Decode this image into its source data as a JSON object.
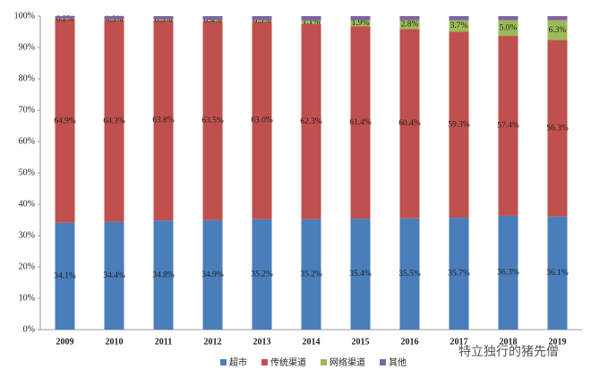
{
  "chart_data": {
    "type": "stacked_bar",
    "categories": [
      "2009",
      "2010",
      "2011",
      "2012",
      "2013",
      "2014",
      "2015",
      "2016",
      "2017",
      "2018",
      "2019"
    ],
    "series": [
      {
        "name": "超市",
        "color": "#4a7ebb",
        "values": [
          34.1,
          34.4,
          34.8,
          34.9,
          35.2,
          35.2,
          35.4,
          35.5,
          35.7,
          36.3,
          36.1
        ],
        "value_labels": [
          "34.1%",
          "34.4%",
          "34.8%",
          "34.9%",
          "35.2%",
          "35.2%",
          "35.4%",
          "35.5%",
          "35.7%",
          "36.3%",
          "36.1%"
        ]
      },
      {
        "name": "传统渠道",
        "color": "#c0504d",
        "values": [
          64.9,
          64.3,
          63.8,
          63.5,
          63.0,
          62.3,
          61.4,
          60.4,
          59.3,
          57.4,
          56.3
        ],
        "value_labels": [
          "64.9%",
          "64.3%",
          "63.8%",
          "63.5%",
          "63.0%",
          "62.3%",
          "61.4%",
          "60.4%",
          "59.3%",
          "57.4%",
          "56.3%"
        ]
      },
      {
        "name": "网络渠道",
        "color": "#9bbb59",
        "values": [
          0.2,
          0.3,
          0.3,
          0.4,
          0.5,
          1.1,
          1.9,
          2.8,
          3.7,
          5.0,
          6.3
        ],
        "value_labels": [
          "0.2%",
          "0.3%",
          "0.3%",
          "0.4%",
          "0.5%",
          "1.1%",
          "1.9%",
          "2.8%",
          "3.7%",
          "5.0%",
          "6.3%"
        ]
      },
      {
        "name": "其他",
        "color": "#8064a2",
        "values": [
          0.8,
          1.0,
          1.1,
          1.2,
          1.3,
          1.4,
          1.3,
          1.3,
          1.3,
          1.3,
          1.3
        ]
      }
    ],
    "ylim": [
      0,
      100
    ],
    "yticks": [
      {
        "value": 0,
        "label": "0%"
      },
      {
        "value": 10,
        "label": "10%"
      },
      {
        "value": 20,
        "label": "20%"
      },
      {
        "value": 30,
        "label": "30%"
      },
      {
        "value": 40,
        "label": "40%"
      },
      {
        "value": 50,
        "label": "50%"
      },
      {
        "value": 60,
        "label": "60%"
      },
      {
        "value": 70,
        "label": "70%"
      },
      {
        "value": 80,
        "label": "80%"
      },
      {
        "value": 90,
        "label": "90%"
      },
      {
        "value": 100,
        "label": "100%"
      }
    ],
    "legend": "bottom",
    "watermark": "特立独行的猪先僧"
  }
}
